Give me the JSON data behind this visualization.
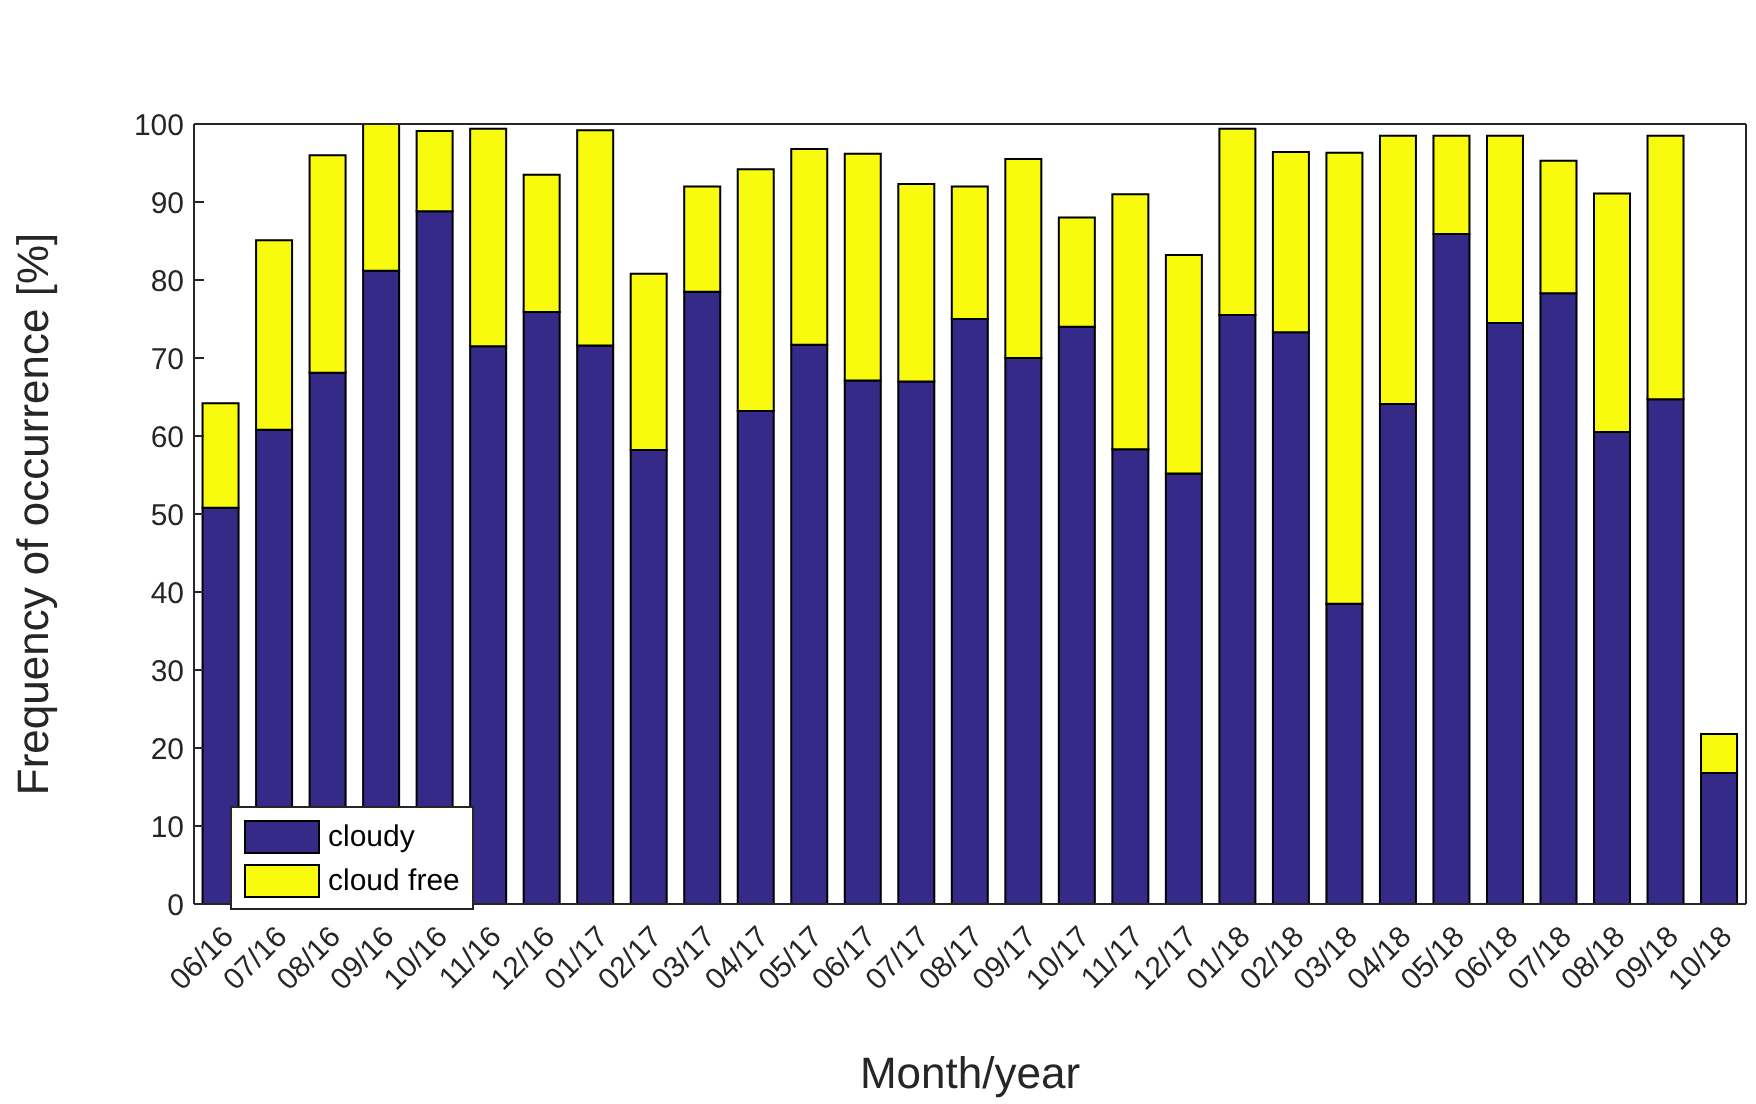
{
  "chart_data": {
    "type": "bar",
    "stacked": true,
    "xlabel": "Month/year",
    "ylabel": "Frequency of occurrence [%]",
    "categories": [
      "06/16",
      "07/16",
      "08/16",
      "09/16",
      "10/16",
      "11/16",
      "12/16",
      "01/17",
      "02/17",
      "03/17",
      "04/17",
      "05/17",
      "06/17",
      "07/17",
      "08/17",
      "09/17",
      "10/17",
      "11/17",
      "12/17",
      "01/18",
      "02/18",
      "03/18",
      "04/18",
      "05/18",
      "06/18",
      "07/18",
      "08/18",
      "09/18",
      "10/18"
    ],
    "series": [
      {
        "name": "cloudy",
        "color": "#352a87",
        "values": [
          50.8,
          60.8,
          68.1,
          81.2,
          88.8,
          71.5,
          75.9,
          71.6,
          58.2,
          78.5,
          63.2,
          71.7,
          67.1,
          67.0,
          75.0,
          70.0,
          74.0,
          58.3,
          55.2,
          75.5,
          73.3,
          38.5,
          64.1,
          85.9,
          74.5,
          78.3,
          60.5,
          64.7,
          16.8
        ]
      },
      {
        "name": "cloud free",
        "color": "#f9fb0e",
        "values": [
          13.4,
          24.3,
          27.9,
          18.8,
          10.3,
          27.9,
          17.6,
          27.6,
          22.6,
          13.5,
          31.0,
          25.1,
          29.1,
          25.3,
          17.0,
          25.5,
          14.0,
          32.7,
          28.0,
          23.9,
          23.1,
          57.8,
          34.4,
          12.6,
          24.0,
          17.0,
          30.6,
          33.8,
          5.0
        ]
      }
    ],
    "ylim": [
      0,
      100
    ],
    "yticks": [
      0,
      10,
      20,
      30,
      40,
      50,
      60,
      70,
      80,
      90,
      100
    ],
    "grid": false,
    "legend": "bottom left"
  }
}
